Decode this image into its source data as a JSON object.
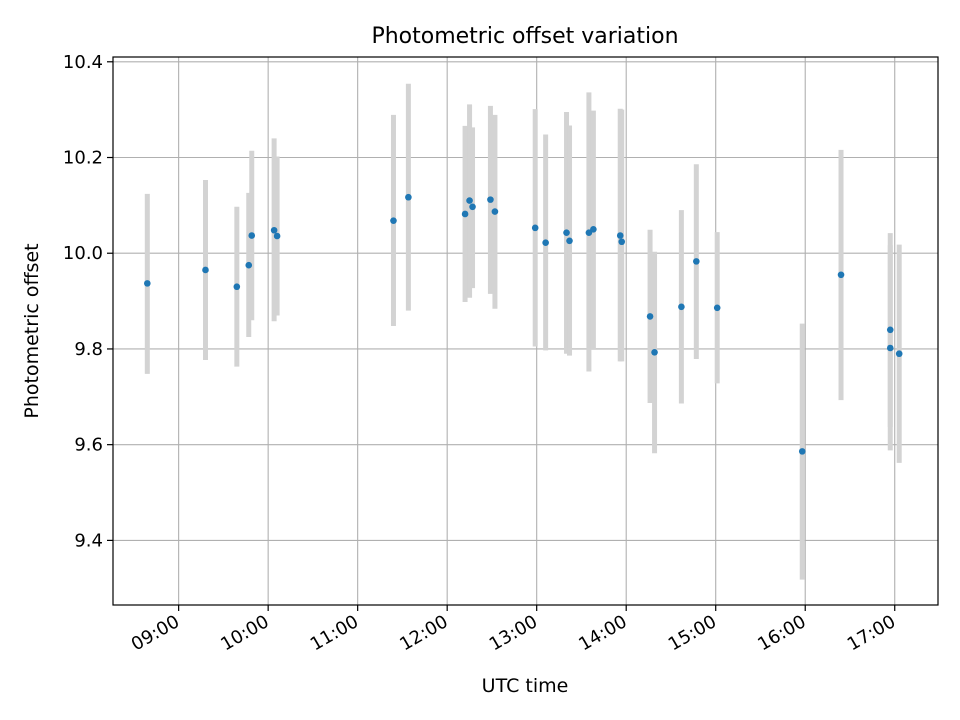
{
  "chart_data": {
    "type": "scatter",
    "title": "Photometric offset variation",
    "xlabel": "UTC time",
    "ylabel": "Photometric offset",
    "xlim": [
      "08:16",
      "17:29"
    ],
    "ylim": [
      9.265,
      10.41
    ],
    "x_ticks": [
      "09:00",
      "10:00",
      "11:00",
      "12:00",
      "13:00",
      "14:00",
      "15:00",
      "16:00",
      "17:00"
    ],
    "y_ticks": [
      "9.4",
      "9.6",
      "9.8",
      "10.0",
      "10.2",
      "10.4"
    ],
    "grid": true,
    "colors": {
      "point": "#1f77b4",
      "errorbar": "#d3d3d3",
      "grid": "#b0b0b0",
      "axes": "#000000"
    },
    "points": [
      {
        "t": "08:39",
        "y": 9.937,
        "lo": 9.748,
        "hi": 10.124
      },
      {
        "t": "09:18",
        "y": 9.965,
        "lo": 9.777,
        "hi": 10.153
      },
      {
        "t": "09:39",
        "y": 9.93,
        "lo": 9.763,
        "hi": 10.097
      },
      {
        "t": "09:47",
        "y": 9.975,
        "lo": 9.825,
        "hi": 10.126
      },
      {
        "t": "09:49",
        "y": 10.037,
        "lo": 9.86,
        "hi": 10.214
      },
      {
        "t": "10:04",
        "y": 10.048,
        "lo": 9.858,
        "hi": 10.24
      },
      {
        "t": "10:06",
        "y": 10.036,
        "lo": 9.87,
        "hi": 10.202
      },
      {
        "t": "11:24",
        "y": 10.068,
        "lo": 9.848,
        "hi": 10.289
      },
      {
        "t": "11:34",
        "y": 10.117,
        "lo": 9.88,
        "hi": 10.354
      },
      {
        "t": "12:12",
        "y": 10.082,
        "lo": 9.898,
        "hi": 10.266
      },
      {
        "t": "12:15",
        "y": 10.11,
        "lo": 9.907,
        "hi": 10.311
      },
      {
        "t": "12:17",
        "y": 10.097,
        "lo": 9.927,
        "hi": 10.263
      },
      {
        "t": "12:29",
        "y": 10.112,
        "lo": 9.915,
        "hi": 10.308
      },
      {
        "t": "12:32",
        "y": 10.087,
        "lo": 9.884,
        "hi": 10.289
      },
      {
        "t": "12:59",
        "y": 10.053,
        "lo": 9.805,
        "hi": 10.301
      },
      {
        "t": "13:06",
        "y": 10.022,
        "lo": 9.797,
        "hi": 10.248
      },
      {
        "t": "13:20",
        "y": 10.043,
        "lo": 9.79,
        "hi": 10.295
      },
      {
        "t": "13:22",
        "y": 10.026,
        "lo": 9.786,
        "hi": 10.267
      },
      {
        "t": "13:35",
        "y": 10.043,
        "lo": 9.753,
        "hi": 10.336
      },
      {
        "t": "13:38",
        "y": 10.05,
        "lo": 9.8,
        "hi": 10.298
      },
      {
        "t": "13:56",
        "y": 10.037,
        "lo": 9.774,
        "hi": 10.302
      },
      {
        "t": "13:57",
        "y": 10.024,
        "lo": 9.774,
        "hi": 10.3
      },
      {
        "t": "14:16",
        "y": 9.868,
        "lo": 9.687,
        "hi": 10.049
      },
      {
        "t": "14:19",
        "y": 9.793,
        "lo": 9.582,
        "hi": 10.003
      },
      {
        "t": "14:37",
        "y": 9.888,
        "lo": 9.686,
        "hi": 10.09
      },
      {
        "t": "14:47",
        "y": 9.983,
        "lo": 9.779,
        "hi": 10.186
      },
      {
        "t": "15:01",
        "y": 9.886,
        "lo": 9.728,
        "hi": 10.044
      },
      {
        "t": "15:58",
        "y": 9.586,
        "lo": 9.318,
        "hi": 9.853
      },
      {
        "t": "16:24",
        "y": 9.955,
        "lo": 9.693,
        "hi": 10.216
      },
      {
        "t": "16:57",
        "y": 9.84,
        "lo": 9.637,
        "hi": 10.042
      },
      {
        "t": "16:57",
        "y": 9.802,
        "lo": 9.588,
        "hi": 10.017
      },
      {
        "t": "17:03",
        "y": 9.79,
        "lo": 9.562,
        "hi": 10.018
      }
    ]
  }
}
